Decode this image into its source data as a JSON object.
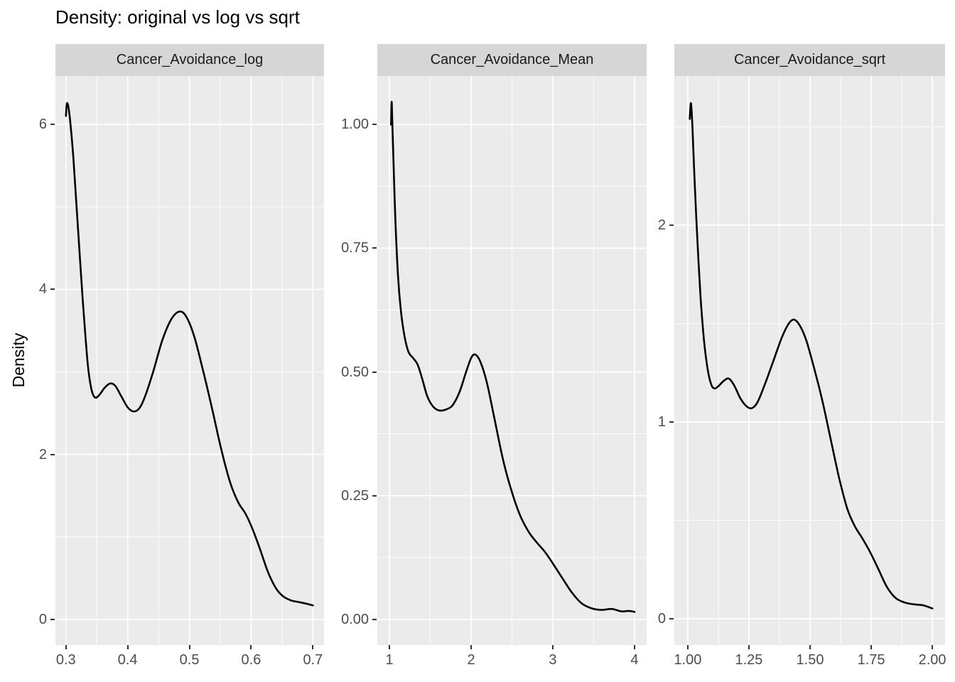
{
  "title": "Density: original vs log vs sqrt",
  "ylabel": "Density",
  "colors": {
    "panel_bg": "#EBEBEB",
    "strip_bg": "#D6D6D6",
    "grid": "#FFFFFF",
    "curve": "#000000",
    "axis_text": "#4D4D4D",
    "tick_mark": "#333333",
    "title_text": "#000000"
  },
  "chart_data": [
    {
      "type": "line",
      "facet_label": "Cancer_Avoidance_log",
      "xlabel": "",
      "ylabel": "Density",
      "x_tick_values": [
        0.3,
        0.4,
        0.5,
        0.6,
        0.7
      ],
      "x_tick_labels": [
        "0.3",
        "0.4",
        "0.5",
        "0.6",
        "0.7"
      ],
      "y_tick_values": [
        0,
        2,
        4,
        6
      ],
      "y_tick_labels": [
        "0",
        "2",
        "4",
        "6"
      ],
      "xlim": [
        0.283,
        0.718
      ],
      "ylim": [
        -0.31,
        6.585
      ],
      "grid": true,
      "points": [
        [
          0.3,
          6.1
        ],
        [
          0.302,
          6.26
        ],
        [
          0.306,
          6.1
        ],
        [
          0.312,
          5.6
        ],
        [
          0.319,
          4.8
        ],
        [
          0.327,
          3.9
        ],
        [
          0.335,
          3.12
        ],
        [
          0.341,
          2.8
        ],
        [
          0.347,
          2.69
        ],
        [
          0.354,
          2.72
        ],
        [
          0.363,
          2.81
        ],
        [
          0.372,
          2.86
        ],
        [
          0.38,
          2.83
        ],
        [
          0.39,
          2.7
        ],
        [
          0.4,
          2.57
        ],
        [
          0.41,
          2.52
        ],
        [
          0.42,
          2.57
        ],
        [
          0.43,
          2.74
        ],
        [
          0.442,
          3.02
        ],
        [
          0.456,
          3.38
        ],
        [
          0.47,
          3.63
        ],
        [
          0.483,
          3.73
        ],
        [
          0.494,
          3.68
        ],
        [
          0.507,
          3.45
        ],
        [
          0.521,
          3.05
        ],
        [
          0.536,
          2.58
        ],
        [
          0.551,
          2.08
        ],
        [
          0.566,
          1.66
        ],
        [
          0.579,
          1.42
        ],
        [
          0.591,
          1.28
        ],
        [
          0.602,
          1.1
        ],
        [
          0.614,
          0.86
        ],
        [
          0.627,
          0.58
        ],
        [
          0.64,
          0.38
        ],
        [
          0.652,
          0.28
        ],
        [
          0.665,
          0.23
        ],
        [
          0.678,
          0.21
        ],
        [
          0.69,
          0.19
        ],
        [
          0.7,
          0.17
        ]
      ]
    },
    {
      "type": "line",
      "facet_label": "Cancer_Avoidance_Mean",
      "xlabel": "",
      "ylabel": "Density",
      "x_tick_values": [
        1,
        2,
        3,
        4
      ],
      "x_tick_labels": [
        "1",
        "2",
        "3",
        "4"
      ],
      "y_tick_values": [
        0,
        0.25,
        0.5,
        0.75,
        1
      ],
      "y_tick_labels": [
        "0.00",
        "0.25",
        "0.50",
        "0.75",
        "1.00"
      ],
      "xlim": [
        0.852,
        4.148
      ],
      "ylim": [
        -0.052,
        1.098
      ],
      "grid": true,
      "points": [
        [
          1.02,
          1.0
        ],
        [
          1.028,
          1.046
        ],
        [
          1.036,
          1.0
        ],
        [
          1.052,
          0.915
        ],
        [
          1.075,
          0.8
        ],
        [
          1.105,
          0.695
        ],
        [
          1.14,
          0.625
        ],
        [
          1.185,
          0.572
        ],
        [
          1.235,
          0.54
        ],
        [
          1.29,
          0.528
        ],
        [
          1.345,
          0.515
        ],
        [
          1.4,
          0.487
        ],
        [
          1.465,
          0.45
        ],
        [
          1.535,
          0.43
        ],
        [
          1.61,
          0.422
        ],
        [
          1.69,
          0.424
        ],
        [
          1.77,
          0.432
        ],
        [
          1.855,
          0.458
        ],
        [
          1.935,
          0.498
        ],
        [
          2.0,
          0.528
        ],
        [
          2.05,
          0.535
        ],
        [
          2.115,
          0.52
        ],
        [
          2.195,
          0.477
        ],
        [
          2.29,
          0.402
        ],
        [
          2.39,
          0.323
        ],
        [
          2.49,
          0.262
        ],
        [
          2.595,
          0.212
        ],
        [
          2.7,
          0.178
        ],
        [
          2.8,
          0.156
        ],
        [
          2.9,
          0.137
        ],
        [
          3.0,
          0.113
        ],
        [
          3.11,
          0.085
        ],
        [
          3.23,
          0.055
        ],
        [
          3.355,
          0.032
        ],
        [
          3.48,
          0.022
        ],
        [
          3.6,
          0.019
        ],
        [
          3.72,
          0.021
        ],
        [
          3.84,
          0.016
        ],
        [
          3.93,
          0.017
        ],
        [
          4.0,
          0.015
        ]
      ]
    },
    {
      "type": "line",
      "facet_label": "Cancer_Avoidance_sqrt",
      "xlabel": "",
      "ylabel": "Density",
      "x_tick_values": [
        1.0,
        1.25,
        1.5,
        1.75,
        2.0
      ],
      "x_tick_labels": [
        "1.00",
        "1.25",
        "1.50",
        "1.75",
        "2.00"
      ],
      "y_tick_values": [
        0,
        1,
        2
      ],
      "y_tick_labels": [
        "0",
        "1",
        "2"
      ],
      "xlim": [
        0.945,
        2.052
      ],
      "ylim": [
        -0.134,
        2.758
      ],
      "grid": true,
      "points": [
        [
          1.008,
          2.54
        ],
        [
          1.013,
          2.62
        ],
        [
          1.019,
          2.5
        ],
        [
          1.028,
          2.22
        ],
        [
          1.039,
          1.93
        ],
        [
          1.052,
          1.64
        ],
        [
          1.066,
          1.42
        ],
        [
          1.081,
          1.27
        ],
        [
          1.096,
          1.19
        ],
        [
          1.11,
          1.17
        ],
        [
          1.128,
          1.185
        ],
        [
          1.148,
          1.21
        ],
        [
          1.168,
          1.22
        ],
        [
          1.19,
          1.185
        ],
        [
          1.215,
          1.12
        ],
        [
          1.24,
          1.08
        ],
        [
          1.262,
          1.07
        ],
        [
          1.285,
          1.1
        ],
        [
          1.315,
          1.19
        ],
        [
          1.35,
          1.31
        ],
        [
          1.385,
          1.43
        ],
        [
          1.413,
          1.5
        ],
        [
          1.435,
          1.52
        ],
        [
          1.458,
          1.49
        ],
        [
          1.483,
          1.42
        ],
        [
          1.513,
          1.29
        ],
        [
          1.548,
          1.12
        ],
        [
          1.583,
          0.92
        ],
        [
          1.618,
          0.72
        ],
        [
          1.652,
          0.56
        ],
        [
          1.683,
          0.47
        ],
        [
          1.713,
          0.41
        ],
        [
          1.745,
          0.34
        ],
        [
          1.78,
          0.25
        ],
        [
          1.815,
          0.16
        ],
        [
          1.85,
          0.105
        ],
        [
          1.888,
          0.082
        ],
        [
          1.925,
          0.073
        ],
        [
          1.963,
          0.068
        ],
        [
          2.0,
          0.052
        ]
      ]
    }
  ]
}
